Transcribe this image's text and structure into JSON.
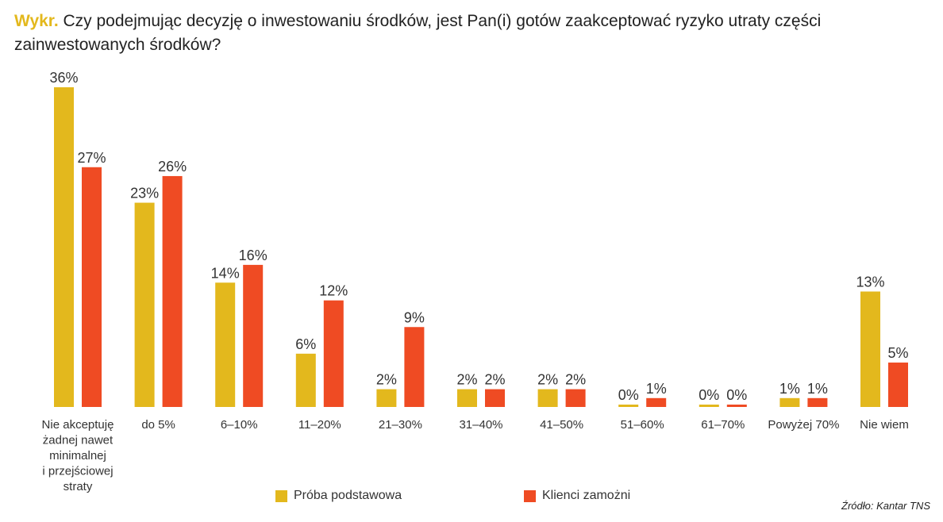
{
  "title": {
    "prefix": "Wykr.",
    "text": "Czy podejmując decyzję o inwestowaniu środków, jest Pan(i) gotów zaakceptować ryzyko utraty części zainwestowanych środków?"
  },
  "colors": {
    "accent": "#e3b81d",
    "series1": "#e3b81d",
    "series2": "#ef4b23"
  },
  "chart_data": {
    "type": "bar",
    "categories": [
      [
        "Nie akceptuję",
        "żadnej nawet",
        "minimalnej",
        "i przejściowej",
        "straty"
      ],
      [
        "do 5%"
      ],
      [
        "6–10%"
      ],
      [
        "11–20%"
      ],
      [
        "21–30%"
      ],
      [
        "31–40%"
      ],
      [
        "41–50%"
      ],
      [
        "51–60%"
      ],
      [
        "61–70%"
      ],
      [
        "Powyżej 70%"
      ],
      [
        "Nie wiem"
      ]
    ],
    "series": [
      {
        "name": "Próba podstawowa",
        "color": "#e3b81d",
        "values": [
          36,
          23,
          14,
          6,
          2,
          2,
          2,
          0,
          0,
          1,
          13
        ],
        "labels": [
          "36%",
          "23%",
          "14%",
          "6%",
          "2%",
          "2%",
          "2%",
          "0%",
          "0%",
          "1%",
          "13%"
        ]
      },
      {
        "name": "Klienci zamożni",
        "color": "#ef4b23",
        "values": [
          27,
          26,
          16,
          12,
          9,
          2,
          2,
          1,
          0,
          1,
          5
        ],
        "labels": [
          "27%",
          "26%",
          "16%",
          "12%",
          "9%",
          "2%",
          "2%",
          "1%",
          "0%",
          "1%",
          "5%"
        ]
      }
    ],
    "ylim": [
      0,
      36
    ],
    "grid": false,
    "legend_position": "bottom"
  },
  "legend": {
    "series1": "Próba podstawowa",
    "series2": "Klienci zamożni"
  },
  "source": "Źródło: Kantar TNS"
}
